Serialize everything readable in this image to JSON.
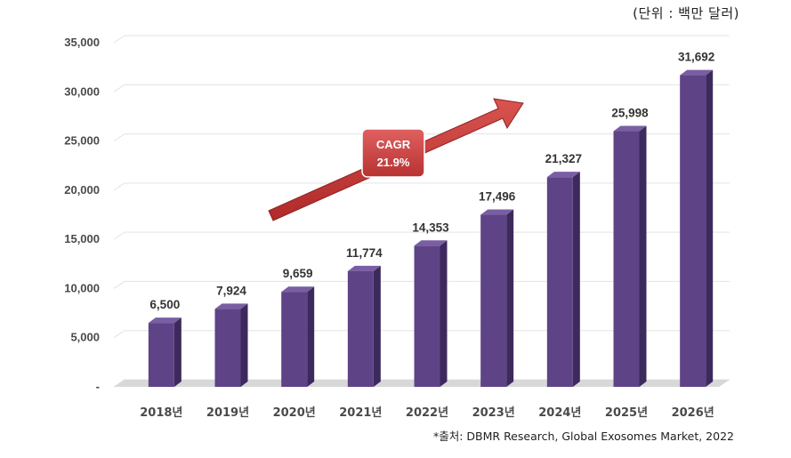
{
  "unit_label": "(단위 : 백만 달러)",
  "source": "*출처: DBMR Research, Global Exosomes Market, 2022",
  "cagr": {
    "line1": "CAGR",
    "line2": "21.9%"
  },
  "colors": {
    "bar_front": "#5e4387",
    "bar_side": "#3d2a5c",
    "bar_top": "#7a5ea3",
    "arrow": "#c63a3a",
    "grid": "#e3e3e3"
  },
  "chart_data": {
    "type": "bar",
    "title": "",
    "xlabel": "",
    "ylabel": "",
    "categories": [
      "2018년",
      "2019년",
      "2020년",
      "2021년",
      "2022년",
      "2023년",
      "2024년",
      "2025년",
      "2026년"
    ],
    "values": [
      6500,
      7924,
      9659,
      11774,
      14353,
      17496,
      21327,
      25998,
      31692
    ],
    "value_labels": [
      "6,500",
      "7,924",
      "9,659",
      "11,774",
      "14,353",
      "17,496",
      "21,327",
      "25,998",
      "31,692"
    ],
    "ylim": [
      0,
      35000
    ],
    "yticks": [
      0,
      5000,
      10000,
      15000,
      20000,
      25000,
      30000,
      35000
    ],
    "ytick_labels": [
      "-",
      "5,000",
      "10,000",
      "15,000",
      "20,000",
      "25,000",
      "30,000",
      "35,000"
    ],
    "grid": true,
    "legend": "none"
  }
}
